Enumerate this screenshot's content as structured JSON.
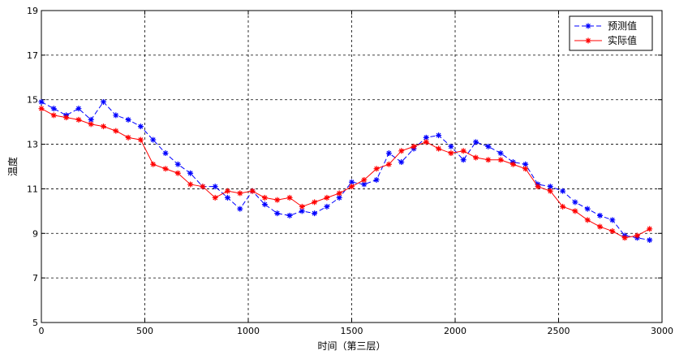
{
  "chart_data": {
    "type": "line",
    "xlabel": "时间（第三层）",
    "ylabel": "温度",
    "xlim": [
      0,
      3000
    ],
    "ylim": [
      5,
      19
    ],
    "xticks": [
      0,
      500,
      1000,
      1500,
      2000,
      2500,
      3000
    ],
    "yticks": [
      5,
      7,
      9,
      11,
      13,
      15,
      17,
      19
    ],
    "grid": true,
    "legend_position": "top-right",
    "series": [
      {
        "name": "预测值",
        "color": "#0000ff",
        "line_style": "dashed",
        "marker": "asterisk",
        "x": [
          0,
          60,
          120,
          180,
          240,
          300,
          360,
          420,
          480,
          540,
          600,
          660,
          720,
          780,
          840,
          900,
          960,
          1020,
          1080,
          1140,
          1200,
          1260,
          1320,
          1380,
          1440,
          1500,
          1560,
          1620,
          1680,
          1740,
          1800,
          1860,
          1920,
          1980,
          2040,
          2100,
          2160,
          2220,
          2280,
          2340,
          2400,
          2460,
          2520,
          2580,
          2640,
          2700,
          2760,
          2820,
          2880,
          2940
        ],
        "y": [
          14.9,
          14.6,
          14.3,
          14.6,
          14.1,
          14.9,
          14.3,
          14.1,
          13.8,
          13.2,
          12.6,
          12.1,
          11.7,
          11.1,
          11.1,
          10.6,
          10.1,
          10.9,
          10.3,
          9.9,
          9.8,
          10.0,
          9.9,
          10.2,
          10.6,
          11.3,
          11.2,
          11.4,
          12.6,
          12.2,
          12.8,
          13.3,
          13.4,
          12.9,
          12.3,
          13.1,
          12.9,
          12.6,
          12.2,
          12.1,
          11.2,
          11.1,
          10.9,
          10.4,
          10.1,
          9.8,
          9.6,
          8.9,
          8.8,
          8.7
        ]
      },
      {
        "name": "实际值",
        "color": "#ff0000",
        "line_style": "solid",
        "marker": "asterisk",
        "x": [
          0,
          60,
          120,
          180,
          240,
          300,
          360,
          420,
          480,
          540,
          600,
          660,
          720,
          780,
          840,
          900,
          960,
          1020,
          1080,
          1140,
          1200,
          1260,
          1320,
          1380,
          1440,
          1500,
          1560,
          1620,
          1680,
          1740,
          1800,
          1860,
          1920,
          1980,
          2040,
          2100,
          2160,
          2220,
          2280,
          2340,
          2400,
          2460,
          2520,
          2580,
          2640,
          2700,
          2760,
          2820,
          2880,
          2940
        ],
        "y": [
          14.6,
          14.3,
          14.2,
          14.1,
          13.9,
          13.8,
          13.6,
          13.3,
          13.2,
          12.1,
          11.9,
          11.7,
          11.2,
          11.1,
          10.6,
          10.9,
          10.8,
          10.9,
          10.6,
          10.5,
          10.6,
          10.2,
          10.4,
          10.6,
          10.8,
          11.1,
          11.4,
          11.9,
          12.1,
          12.7,
          12.9,
          13.1,
          12.8,
          12.6,
          12.7,
          12.4,
          12.3,
          12.3,
          12.1,
          11.9,
          11.1,
          10.9,
          10.2,
          10.0,
          9.6,
          9.3,
          9.1,
          8.8,
          8.9,
          9.2
        ]
      }
    ]
  }
}
